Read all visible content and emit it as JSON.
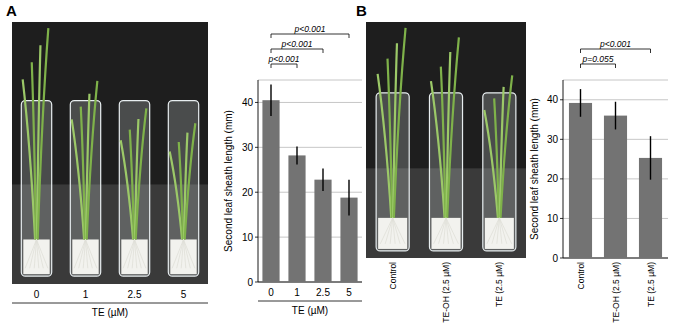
{
  "panels": [
    {
      "label": "A",
      "photo_labels": [
        "0",
        "1",
        "2.5",
        "5"
      ],
      "photo_caption": "TE (µM)"
    },
    {
      "label": "B",
      "photo_labels": [
        "Control",
        "TE-OH (2.5 µM)",
        "TE (2.5 µM)"
      ]
    }
  ],
  "chart_data": [
    {
      "type": "bar",
      "categories": [
        "0",
        "1",
        "2.5",
        "5"
      ],
      "values": [
        40.5,
        28.2,
        22.8,
        18.8
      ],
      "errors": [
        3.5,
        2,
        2.5,
        4
      ],
      "color": "#737373",
      "ylabel": "Second leaf sheath length (mm)",
      "xlabel": "TE (µM)",
      "ylim": [
        0,
        45
      ],
      "yticks": [
        0,
        10,
        20,
        30,
        40
      ],
      "grid": true,
      "annotations": [
        {
          "text": "p<0.001",
          "from": 0,
          "to": 1
        },
        {
          "text": "p<0.001",
          "from": 0,
          "to": 2
        },
        {
          "text": "p<0.001",
          "from": 0,
          "to": 3
        }
      ]
    },
    {
      "type": "bar",
      "categories": [
        "Control",
        "TE-OH (2.5 µM)",
        "TE (2.5 µM)"
      ],
      "values": [
        39.2,
        36,
        25.3
      ],
      "errors": [
        3.5,
        3.5,
        5.5
      ],
      "color": "#737373",
      "ylabel": "Second leaf sheath length (mm)",
      "ylim": [
        0,
        45
      ],
      "yticks": [
        0,
        10,
        20,
        30,
        40
      ],
      "grid": true,
      "annotations": [
        {
          "text": "p=0.055",
          "from": 0,
          "to": 1
        },
        {
          "text": "p<0.001",
          "from": 0,
          "to": 2
        }
      ]
    }
  ]
}
